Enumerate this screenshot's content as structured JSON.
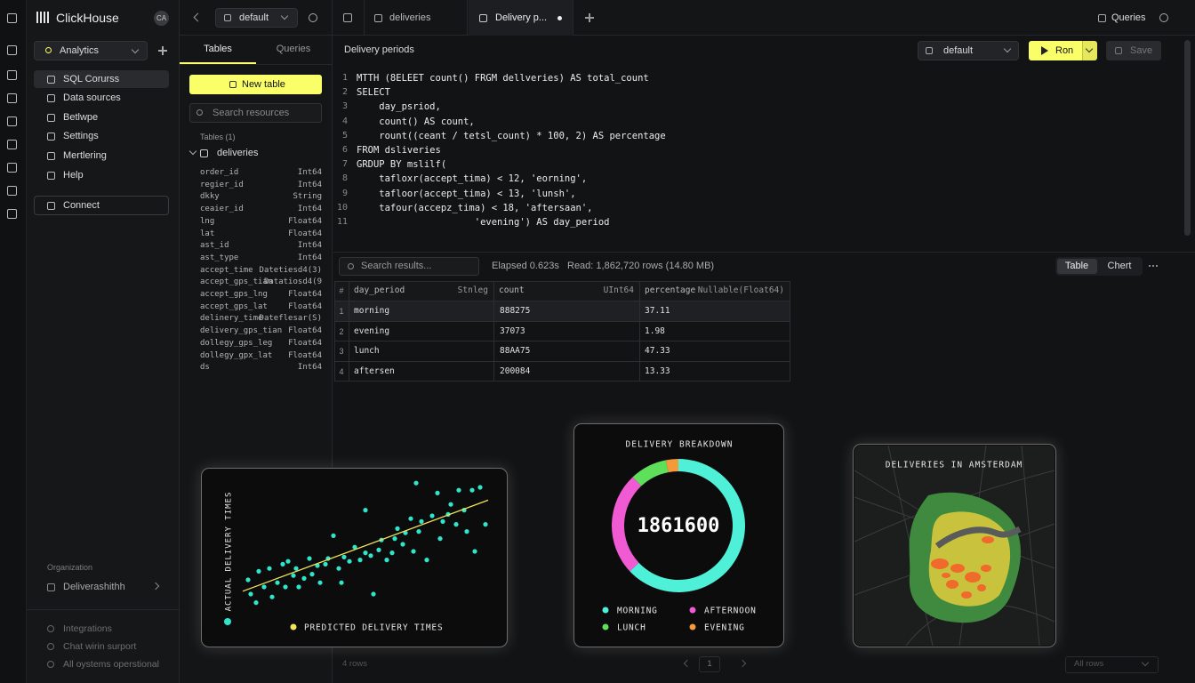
{
  "sidebar": {
    "brand": "ClickHouse",
    "avatar": "CA",
    "workspace": "Analytics",
    "nav": [
      "SQL Corurss",
      "Data sources",
      "Betlwpe",
      "Settings",
      "Mertlering",
      "Help"
    ],
    "connect": "Connect",
    "org_label": "Organization",
    "org_name": "Deliverashithh",
    "footer": [
      "Integrations",
      "Chat wirin surport",
      "All oystems operstional"
    ]
  },
  "topbar": {
    "database": "default",
    "tabs": [
      "deliveries",
      "Delivery p..."
    ],
    "queries": "Queries"
  },
  "resources": {
    "tabs": [
      "Tables",
      "Queries"
    ],
    "new_table": "New table",
    "search": "Search resources",
    "tables_label": "Tables (1)",
    "table": "deliveries",
    "columns": [
      [
        "order_id",
        "Int64"
      ],
      [
        "regier_id",
        "Int64"
      ],
      [
        "dkky",
        "String"
      ],
      [
        "ceaier_id",
        "Int64"
      ],
      [
        "lng",
        "Float64"
      ],
      [
        "lat",
        "Float64"
      ],
      [
        "ast_id",
        "Int64"
      ],
      [
        "ast_type",
        "Int64"
      ],
      [
        "accept_time",
        "Datetiesd4(3)"
      ],
      [
        "accept_gps_tiam",
        "Datatiosd4(9"
      ],
      [
        "accept_gps_lng",
        "Float64"
      ],
      [
        "accept_gps_lat",
        "Float64"
      ],
      [
        "delinery_time",
        "Dateflesar(S)"
      ],
      [
        "delivery_gps_tian",
        "Float64"
      ],
      [
        "dollegy_gps_leg",
        "Float64"
      ],
      [
        "dollegy_gpx_lat",
        "Float64"
      ],
      [
        "ds",
        "Int64"
      ]
    ]
  },
  "editor": {
    "title": "Delivery periods",
    "database": "default",
    "run": "Ron",
    "save": "Save",
    "lines": [
      {
        "n": 1,
        "code": "MTTH (8ELEET count() FRGM dellveries) AS total_count"
      },
      {
        "n": 2,
        "code": "SELECT"
      },
      {
        "n": 3,
        "code": "    day_psriod,"
      },
      {
        "n": 4,
        "code": "    count() AS count,"
      },
      {
        "n": 5,
        "code": "    rount((ceant / tetsl_count) * 100, 2) AS percentage"
      },
      {
        "n": 6,
        "code": "FROM dsliveries"
      },
      {
        "n": 7,
        "code": "GRDUP BY mslilf("
      },
      {
        "n": 8,
        "code": "    tafloxr(accept_tima) < 12, 'eorning',"
      },
      {
        "n": 9,
        "code": "    tafloor(accept_tima) < 13, 'lunsh',"
      },
      {
        "n": 10,
        "code": "    tafour(accepz_tima) < 18, 'aftersaan',"
      },
      {
        "n": 11,
        "code": "                     'evening') AS day_period"
      }
    ]
  },
  "results": {
    "search": "Search results...",
    "elapsed": "Elapsed 0.623s",
    "read": "Read: 1,862,720 rows (14.80 MB)",
    "views": [
      "Table",
      "Chert"
    ],
    "table": {
      "index_header": "#",
      "columns": [
        {
          "name": "day_period",
          "type": "Stnleg"
        },
        {
          "name": "count",
          "type": "UInt64"
        },
        {
          "name": "percentage",
          "type": "Nullable(Float64)"
        }
      ],
      "rows": [
        [
          "1",
          "morning",
          "888275",
          "37.11"
        ],
        [
          "2",
          "evening",
          "37073",
          "1.98"
        ],
        [
          "3",
          "lunch",
          "88AA75",
          "47.33"
        ],
        [
          "4",
          "aftersen",
          "200084",
          "13.33"
        ]
      ]
    },
    "row_count": "4 rows",
    "page": "1",
    "page_size": "All rows"
  },
  "chart_data": [
    {
      "type": "scatter",
      "ylabel": "ACTUAL DELIVERY TIMES",
      "xlim": [
        0,
        100
      ],
      "ylim": [
        0,
        100
      ],
      "series": [
        {
          "type": "scatter",
          "color": "#2ee6c9",
          "x": [
            9,
            11,
            8,
            12,
            14,
            16,
            17,
            19,
            21,
            22,
            23,
            25,
            26,
            27,
            29,
            31,
            32,
            34,
            35,
            37,
            38,
            40,
            42,
            43,
            44,
            46,
            48,
            50,
            52,
            52,
            54,
            55,
            57,
            58,
            60,
            62,
            63,
            64,
            66,
            67,
            69,
            70,
            71,
            72,
            73,
            75,
            77,
            79,
            80,
            81,
            83,
            84,
            86,
            87,
            89,
            90,
            92,
            93,
            95,
            97
          ],
          "values": [
            20,
            14,
            30,
            36,
            25,
            38,
            18,
            28,
            41,
            25,
            43,
            33,
            38,
            25,
            31,
            45,
            34,
            40,
            28,
            41,
            45,
            61,
            38,
            28,
            46,
            43,
            53,
            44,
            49,
            79,
            47,
            20,
            51,
            58,
            44,
            49,
            59,
            66,
            55,
            63,
            73,
            50,
            98,
            64,
            71,
            44,
            75,
            91,
            59,
            71,
            76,
            83,
            69,
            93,
            79,
            64,
            93,
            50,
            95,
            69
          ]
        },
        {
          "type": "line",
          "name": "PREDICTED DELIVERY TIMES",
          "color": "#f2e35a",
          "x": [
            6,
            98
          ],
          "values": [
            22,
            86
          ]
        }
      ]
    },
    {
      "type": "donut",
      "title": "DELIVERY BREAKDOWN",
      "center_label": "1861600",
      "categories": [
        "MORNING",
        "AFTERNOON",
        "LUNCH",
        "EVENING"
      ],
      "values": [
        63,
        25,
        9,
        3
      ],
      "colors": [
        "#4ff0d8",
        "#f05ad2",
        "#5fe05a",
        "#f39a3a"
      ]
    },
    {
      "type": "map",
      "title": "DELIVERIES IN AMSTERDAM"
    }
  ]
}
